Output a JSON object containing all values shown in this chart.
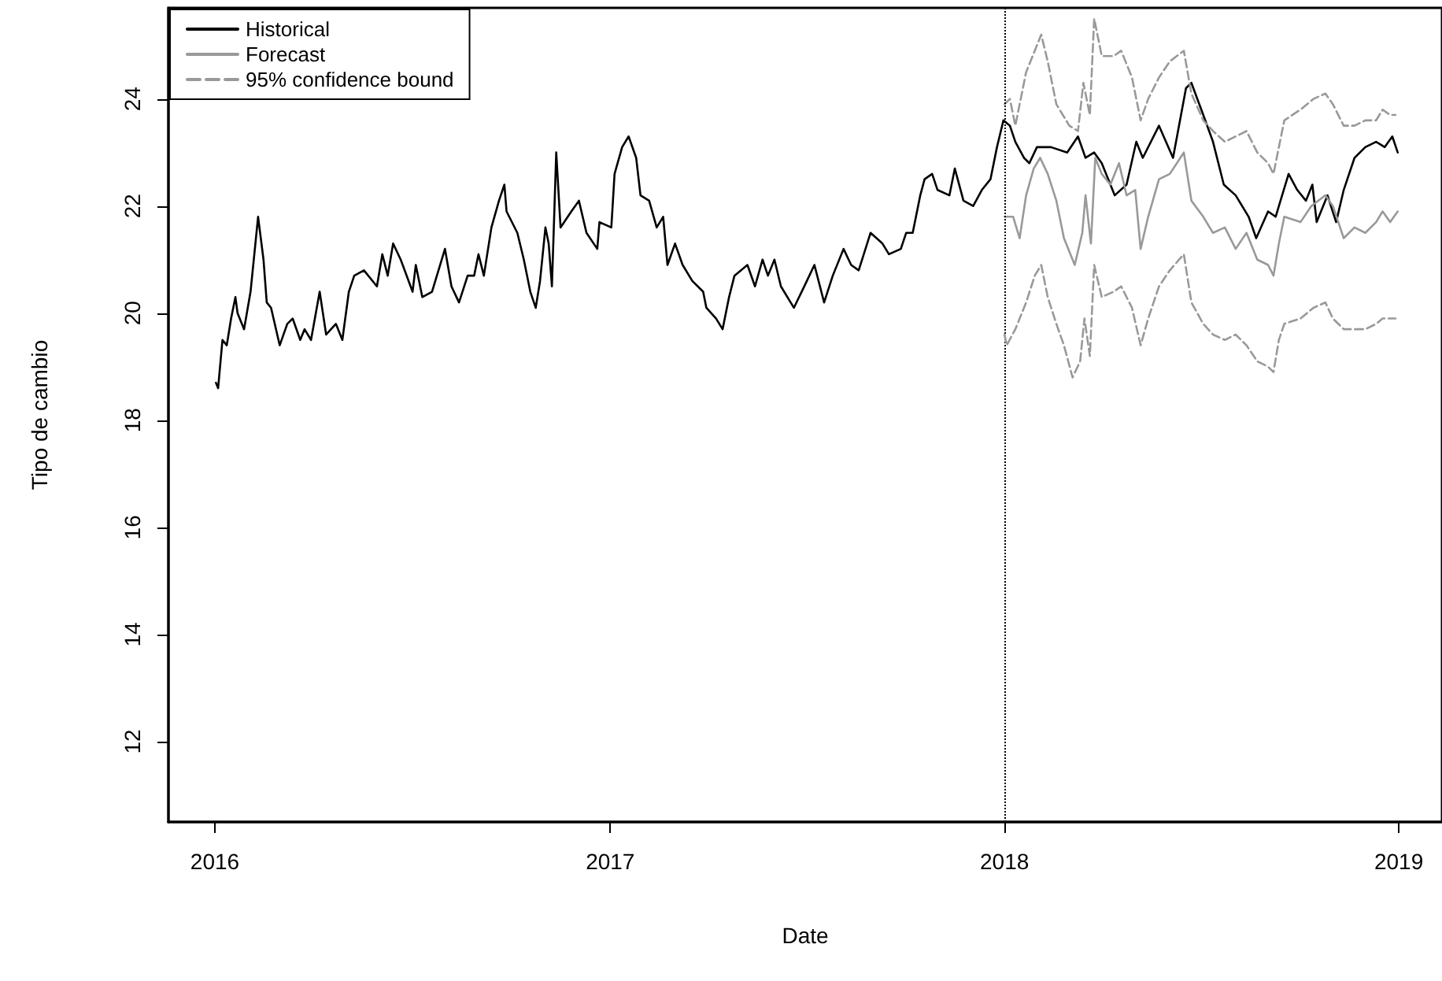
{
  "chart_data": {
    "type": "line",
    "xlabel": "Date",
    "ylabel": "Tipo de cambio",
    "xlim": [
      "2015-11-19",
      "2019-02-10"
    ],
    "ylim": [
      10.5,
      25.7
    ],
    "xticks": [
      {
        "value": "2016-01-01",
        "label": "2016"
      },
      {
        "value": "2017-01-01",
        "label": "2017"
      },
      {
        "value": "2018-01-01",
        "label": "2018"
      },
      {
        "value": "2019-01-01",
        "label": "2019"
      }
    ],
    "yticks": [
      12,
      14,
      16,
      18,
      20,
      22,
      24
    ],
    "grid": false,
    "legend": "top left",
    "marker": "none",
    "ref_lines": [
      {
        "axis": "x",
        "value": "2018-01-01",
        "color": "#000000",
        "line_style": "dotted"
      }
    ],
    "series": [
      {
        "name": "Historical",
        "color": "#000000",
        "line_style": "solid",
        "x": [
          "2016-01-02",
          "2016-01-04",
          "2016-01-08",
          "2016-01-12",
          "2016-01-16",
          "2016-01-20",
          "2016-01-22",
          "2016-01-28",
          "2016-02-03",
          "2016-02-10",
          "2016-02-15",
          "2016-02-18",
          "2016-02-22",
          "2016-03-01",
          "2016-03-08",
          "2016-03-13",
          "2016-03-20",
          "2016-03-24",
          "2016-03-30",
          "2016-04-07",
          "2016-04-13",
          "2016-04-22",
          "2016-04-28",
          "2016-05-04",
          "2016-05-09",
          "2016-05-18",
          "2016-05-30",
          "2016-06-04",
          "2016-06-09",
          "2016-06-14",
          "2016-06-21",
          "2016-07-02",
          "2016-07-05",
          "2016-07-11",
          "2016-07-20",
          "2016-08-01",
          "2016-08-07",
          "2016-08-14",
          "2016-08-22",
          "2016-08-28",
          "2016-09-01",
          "2016-09-06",
          "2016-09-13",
          "2016-09-20",
          "2016-09-25",
          "2016-09-27",
          "2016-10-07",
          "2016-10-13",
          "2016-10-19",
          "2016-10-24",
          "2016-10-28",
          "2016-11-02",
          "2016-11-05",
          "2016-11-08",
          "2016-11-12",
          "2016-11-16",
          "2016-11-26",
          "2016-12-03",
          "2016-12-10",
          "2016-12-20",
          "2016-12-22",
          "2017-01-02",
          "2017-01-05",
          "2017-01-12",
          "2017-01-18",
          "2017-01-25",
          "2017-01-29",
          "2017-02-06",
          "2017-02-13",
          "2017-02-19",
          "2017-02-23",
          "2017-03-02",
          "2017-03-09",
          "2017-03-18",
          "2017-03-28",
          "2017-03-31",
          "2017-04-09",
          "2017-04-15",
          "2017-04-21",
          "2017-04-26",
          "2017-05-08",
          "2017-05-15",
          "2017-05-22",
          "2017-05-27",
          "2017-06-02",
          "2017-06-08",
          "2017-06-20",
          "2017-07-02",
          "2017-07-09",
          "2017-07-18",
          "2017-07-26",
          "2017-08-05",
          "2017-08-12",
          "2017-08-19",
          "2017-08-30",
          "2017-09-10",
          "2017-09-16",
          "2017-09-27",
          "2017-10-02",
          "2017-10-08",
          "2017-10-15",
          "2017-10-19",
          "2017-10-26",
          "2017-10-31",
          "2017-11-11",
          "2017-11-16",
          "2017-11-24",
          "2017-12-03",
          "2017-12-11",
          "2017-12-19",
          "2017-12-25",
          "2017-12-31",
          "2018-01-06",
          "2018-01-11",
          "2018-01-19",
          "2018-01-24",
          "2018-01-31",
          "2018-02-13",
          "2018-02-28",
          "2018-03-10",
          "2018-03-17",
          "2018-03-25",
          "2018-04-01",
          "2018-04-13",
          "2018-04-24",
          "2018-05-03",
          "2018-05-09",
          "2018-05-24",
          "2018-06-06",
          "2018-06-18",
          "2018-06-23",
          "2018-07-04",
          "2018-07-13",
          "2018-07-23",
          "2018-08-03",
          "2018-08-15",
          "2018-08-22",
          "2018-09-02",
          "2018-09-09",
          "2018-09-21",
          "2018-09-29",
          "2018-10-07",
          "2018-10-13",
          "2018-10-17",
          "2018-10-27",
          "2018-11-04",
          "2018-11-11",
          "2018-11-21",
          "2018-12-01",
          "2018-12-11",
          "2018-12-19",
          "2018-12-26",
          "2018-12-31"
        ],
        "values": [
          18.7,
          18.6,
          19.5,
          19.4,
          19.9,
          20.3,
          20.0,
          19.7,
          20.4,
          21.8,
          21.0,
          20.2,
          20.1,
          19.4,
          19.8,
          19.9,
          19.5,
          19.7,
          19.5,
          20.4,
          19.6,
          19.8,
          19.5,
          20.4,
          20.7,
          20.8,
          20.5,
          21.1,
          20.7,
          21.3,
          21.0,
          20.4,
          20.9,
          20.3,
          20.4,
          21.2,
          20.5,
          20.2,
          20.7,
          20.7,
          21.1,
          20.7,
          21.6,
          22.1,
          22.4,
          21.9,
          21.5,
          21.0,
          20.4,
          20.1,
          20.6,
          21.6,
          21.3,
          20.5,
          23.0,
          21.6,
          21.9,
          22.1,
          21.5,
          21.2,
          21.7,
          21.6,
          22.6,
          23.1,
          23.3,
          22.9,
          22.2,
          22.1,
          21.6,
          21.8,
          20.9,
          21.3,
          20.9,
          20.6,
          20.4,
          20.1,
          19.9,
          19.7,
          20.3,
          20.7,
          20.9,
          20.5,
          21.0,
          20.7,
          21.0,
          20.5,
          20.1,
          20.6,
          20.9,
          20.2,
          20.7,
          21.2,
          20.9,
          20.8,
          21.5,
          21.3,
          21.1,
          21.2,
          21.5,
          21.5,
          22.2,
          22.5,
          22.6,
          22.3,
          22.2,
          22.7,
          22.1,
          22.0,
          22.3,
          22.5,
          23.1,
          23.6,
          23.5,
          23.2,
          22.9,
          22.8,
          23.1,
          23.1,
          23.0,
          23.3,
          22.9,
          23.0,
          22.8,
          22.2,
          22.4,
          23.2,
          22.9,
          23.5,
          22.9,
          24.2,
          24.3,
          23.7,
          23.2,
          22.4,
          22.2,
          21.8,
          21.4,
          21.9,
          21.8,
          22.6,
          22.3,
          22.1,
          22.4,
          21.7,
          22.2,
          21.7,
          22.3,
          22.9,
          23.1,
          23.2,
          23.1,
          23.3,
          23.0
        ]
      },
      {
        "name": "Forecast",
        "color": "#999999",
        "line_style": "solid",
        "x": [
          "2018-01-01",
          "2018-01-09",
          "2018-01-15",
          "2018-01-21",
          "2018-01-28",
          "2018-02-03",
          "2018-02-10",
          "2018-02-18",
          "2018-02-25",
          "2018-03-07",
          "2018-03-14",
          "2018-03-17",
          "2018-03-22",
          "2018-03-26",
          "2018-04-01",
          "2018-04-09",
          "2018-04-17",
          "2018-04-24",
          "2018-05-02",
          "2018-05-07",
          "2018-05-14",
          "2018-05-24",
          "2018-06-03",
          "2018-06-16",
          "2018-06-23",
          "2018-07-04",
          "2018-07-13",
          "2018-07-24",
          "2018-08-03",
          "2018-08-13",
          "2018-08-23",
          "2018-09-02",
          "2018-09-07",
          "2018-09-12",
          "2018-09-17",
          "2018-10-02",
          "2018-10-12",
          "2018-10-25",
          "2018-11-01",
          "2018-11-11",
          "2018-11-21",
          "2018-12-01",
          "2018-12-11",
          "2018-12-17",
          "2018-12-24",
          "2018-12-31"
        ],
        "values": [
          21.8,
          21.8,
          21.4,
          22.2,
          22.7,
          22.9,
          22.6,
          22.1,
          21.4,
          20.9,
          21.5,
          22.2,
          21.3,
          22.9,
          22.6,
          22.4,
          22.8,
          22.2,
          22.3,
          21.2,
          21.8,
          22.5,
          22.6,
          23.0,
          22.1,
          21.8,
          21.5,
          21.6,
          21.2,
          21.5,
          21.0,
          20.9,
          20.7,
          21.3,
          21.8,
          21.7,
          22.0,
          22.2,
          22.0,
          21.4,
          21.6,
          21.5,
          21.7,
          21.9,
          21.7,
          21.9
        ]
      },
      {
        "name": "95% confidence bound",
        "color": "#999999",
        "line_style": "dashed",
        "x": [
          "2018-01-01",
          "2018-01-06",
          "2018-01-11",
          "2018-01-21",
          "2018-01-29",
          "2018-02-04",
          "2018-02-10",
          "2018-02-18",
          "2018-03-02",
          "2018-03-10",
          "2018-03-15",
          "2018-03-21",
          "2018-03-25",
          "2018-04-01",
          "2018-04-12",
          "2018-04-19",
          "2018-04-29",
          "2018-05-07",
          "2018-05-14",
          "2018-05-24",
          "2018-06-03",
          "2018-06-16",
          "2018-06-23",
          "2018-07-04",
          "2018-07-13",
          "2018-07-24",
          "2018-08-03",
          "2018-08-13",
          "2018-08-23",
          "2018-09-02",
          "2018-09-07",
          "2018-09-12",
          "2018-09-17",
          "2018-10-02",
          "2018-10-14",
          "2018-10-25",
          "2018-11-01",
          "2018-11-11",
          "2018-11-21",
          "2018-12-01",
          "2018-12-11",
          "2018-12-17",
          "2018-12-24",
          "2018-12-29"
        ],
        "values": [
          23.9,
          24.0,
          23.5,
          24.5,
          24.9,
          25.2,
          24.7,
          23.9,
          23.5,
          23.4,
          24.3,
          23.7,
          25.5,
          24.8,
          24.8,
          24.9,
          24.4,
          23.6,
          24.0,
          24.4,
          24.7,
          24.9,
          24.1,
          23.6,
          23.4,
          23.2,
          23.3,
          23.4,
          23.0,
          22.8,
          22.6,
          23.1,
          23.6,
          23.8,
          24.0,
          24.1,
          23.9,
          23.5,
          23.5,
          23.6,
          23.6,
          23.8,
          23.7,
          23.7
        ]
      },
      {
        "color": "#999999",
        "line_style": "dashed",
        "x": [
          "2018-01-01",
          "2018-01-03",
          "2018-01-11",
          "2018-01-21",
          "2018-01-29",
          "2018-02-04",
          "2018-02-10",
          "2018-02-18",
          "2018-02-25",
          "2018-03-05",
          "2018-03-12",
          "2018-03-16",
          "2018-03-21",
          "2018-03-25",
          "2018-04-01",
          "2018-04-12",
          "2018-04-19",
          "2018-04-29",
          "2018-05-07",
          "2018-05-14",
          "2018-05-24",
          "2018-06-03",
          "2018-06-16",
          "2018-06-23",
          "2018-07-04",
          "2018-07-13",
          "2018-07-24",
          "2018-08-03",
          "2018-08-13",
          "2018-08-23",
          "2018-09-02",
          "2018-09-07",
          "2018-09-12",
          "2018-09-17",
          "2018-10-02",
          "2018-10-14",
          "2018-10-25",
          "2018-11-01",
          "2018-11-11",
          "2018-11-21",
          "2018-12-01",
          "2018-12-11",
          "2018-12-17",
          "2018-12-24",
          "2018-12-29"
        ],
        "values": [
          19.6,
          19.4,
          19.7,
          20.2,
          20.7,
          20.9,
          20.3,
          19.8,
          19.4,
          18.8,
          19.1,
          19.9,
          19.2,
          20.9,
          20.3,
          20.4,
          20.5,
          20.1,
          19.4,
          19.9,
          20.5,
          20.8,
          21.1,
          20.2,
          19.8,
          19.6,
          19.5,
          19.6,
          19.4,
          19.1,
          19.0,
          18.9,
          19.5,
          19.8,
          19.9,
          20.1,
          20.2,
          19.9,
          19.7,
          19.7,
          19.7,
          19.8,
          19.9,
          19.9,
          19.9
        ]
      }
    ]
  }
}
